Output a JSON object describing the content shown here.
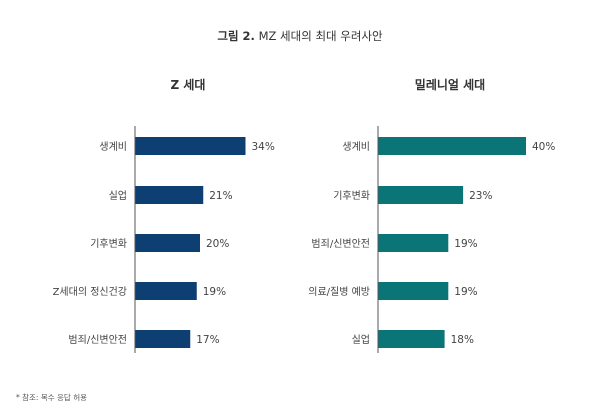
{
  "figure": {
    "title_bold": "그림 2.",
    "title_rest": " MZ 세대의 최대 우려사안",
    "footnote": "* 참조: 복수 응답 허용"
  },
  "chart_data": [
    {
      "type": "bar",
      "orientation": "horizontal",
      "title": "Z 세대",
      "categories": [
        "생계비",
        "실업",
        "기후변화",
        "Z세대의 정신건강",
        "범죄/신변안전"
      ],
      "values": [
        34,
        21,
        20,
        19,
        17
      ],
      "value_labels": [
        "34%",
        "21%",
        "20%",
        "19%",
        "17%"
      ],
      "unit": "%",
      "color": "#0d3f73",
      "xlim": [
        0,
        40
      ],
      "grid": false,
      "legend": "none"
    },
    {
      "type": "bar",
      "orientation": "horizontal",
      "title": "밀레니얼 세대",
      "categories": [
        "생계비",
        "기후변화",
        "범죄/신변안전",
        "의료/질병 예방",
        "실업"
      ],
      "values": [
        40,
        23,
        19,
        19,
        18
      ],
      "value_labels": [
        "40%",
        "23%",
        "19%",
        "19%",
        "18%"
      ],
      "unit": "%",
      "color": "#0b7477",
      "xlim": [
        0,
        40
      ],
      "grid": false,
      "legend": "none"
    }
  ]
}
